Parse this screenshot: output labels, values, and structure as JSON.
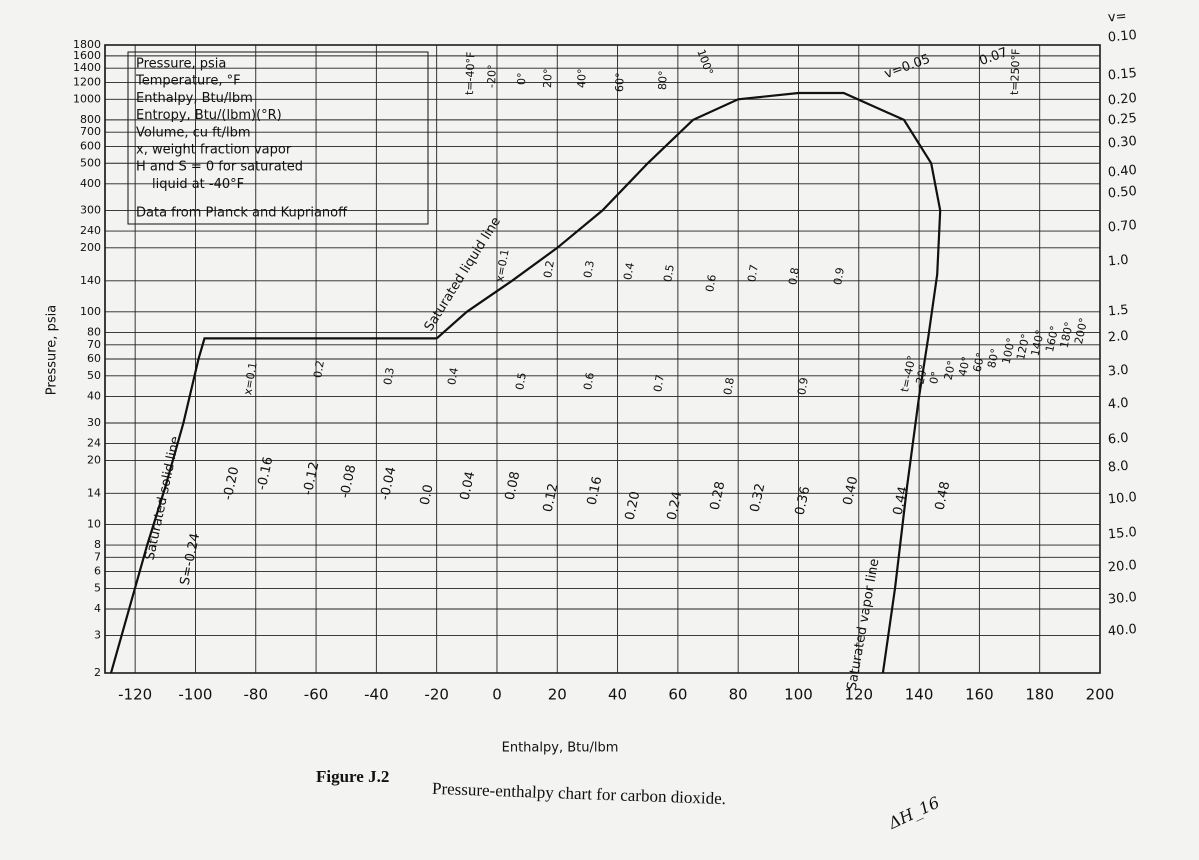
{
  "chart_data": {
    "type": "line",
    "caption_label": "Figure J.2",
    "caption": "Pressure-enthalpy chart for carbon dioxide.",
    "handwritten_note": "ΔH_16",
    "xlabel": "Enthalpy, Btu/lbm",
    "ylabel": "Pressure, psia",
    "xlim": [
      -130,
      200
    ],
    "ylim": [
      2,
      1800
    ],
    "ylog": true,
    "grid": true,
    "xticks": [
      -120,
      -100,
      -80,
      -60,
      -40,
      -20,
      0,
      20,
      40,
      60,
      80,
      100,
      120,
      140,
      160,
      180,
      200
    ],
    "yticks": [
      2,
      3,
      4,
      5,
      6,
      7,
      8,
      10,
      14,
      20,
      24,
      30,
      40,
      50,
      60,
      70,
      80,
      100,
      140,
      200,
      240,
      300,
      400,
      500,
      600,
      700,
      800,
      1000,
      1200,
      1400,
      1600,
      1800
    ],
    "series": [
      {
        "name": "Saturated solid line",
        "color": "#111111",
        "x": [
          -128,
          -122,
          -116,
          -110,
          -104,
          -99,
          -97,
          -20
        ],
        "values": [
          2,
          4,
          8,
          15,
          30,
          60,
          75,
          75
        ]
      },
      {
        "name": "Saturated liquid line",
        "color": "#111111",
        "x": [
          -20,
          -10,
          5,
          20,
          35,
          50,
          65,
          80,
          100
        ],
        "values": [
          75,
          100,
          140,
          200,
          300,
          500,
          800,
          1000,
          1070
        ]
      },
      {
        "name": "Saturated vapor line",
        "color": "#111111",
        "x": [
          100,
          115,
          135,
          144,
          147,
          146,
          143,
          140,
          136,
          132,
          128
        ],
        "values": [
          1070,
          1070,
          800,
          500,
          300,
          150,
          75,
          40,
          15,
          5,
          2
        ]
      }
    ],
    "annotations": {
      "legend_box": [
        "Pressure, psia",
        "Temperature, °F",
        "Enthalpy, Btu/lbm",
        "Entropy, Btu/(lbm)(°R)",
        "Volume, cu ft/lbm",
        "x, weight fraction vapor",
        "H and S = 0 for saturated",
        "liquid at -40°F",
        "Data from Planck and Kuprianoff"
      ],
      "curve_labels": [
        "Saturated solid line",
        "Saturated liquid line",
        "Saturated vapor line"
      ],
      "entropy_labels": [
        "S=-0.24",
        "-0.20",
        "-0.16",
        "-0.12",
        "-0.08",
        "-0.04",
        "0.0",
        "0.04",
        "0.08",
        "0.12",
        "0.16",
        "0.20",
        "0.24",
        "0.28",
        "0.32",
        "0.36",
        "0.40",
        "0.44",
        "0.48"
      ],
      "volume_labels": [
        "v=",
        "0.10",
        "0.15",
        "0.20",
        "0.25",
        "0.30",
        "0.40",
        "0.50",
        "0.70",
        "1.0",
        "1.5",
        "2.0",
        "3.0",
        "4.0",
        "6.0",
        "8.0",
        "10.0",
        "15.0",
        "20.0",
        "30.0",
        "40.0"
      ],
      "liquid_temperature_labels": [
        "t=-40°F",
        "-20°",
        "0°",
        "20°",
        "40°",
        "60°",
        "80°",
        "100°",
        "t=250°F"
      ],
      "vapor_temperature_labels": [
        "t=-40°",
        "-20°",
        "0°",
        "20°",
        "40°",
        "60°",
        "80°",
        "100°",
        "120°",
        "140°",
        "160°",
        "180°",
        "200°"
      ],
      "quality_labels_upper": [
        "x=0.1",
        "0.2",
        "0.3",
        "0.4",
        "0.5",
        "0.6",
        "0.7",
        "0.8",
        "0.9"
      ],
      "quality_labels_lower": [
        "x=0.1",
        "0.2",
        "0.3",
        "0.4",
        "0.5",
        "0.6",
        "0.7",
        "0.8",
        "0.9"
      ],
      "dome_volume_labels": [
        "v=0.05",
        "0.07"
      ]
    }
  }
}
